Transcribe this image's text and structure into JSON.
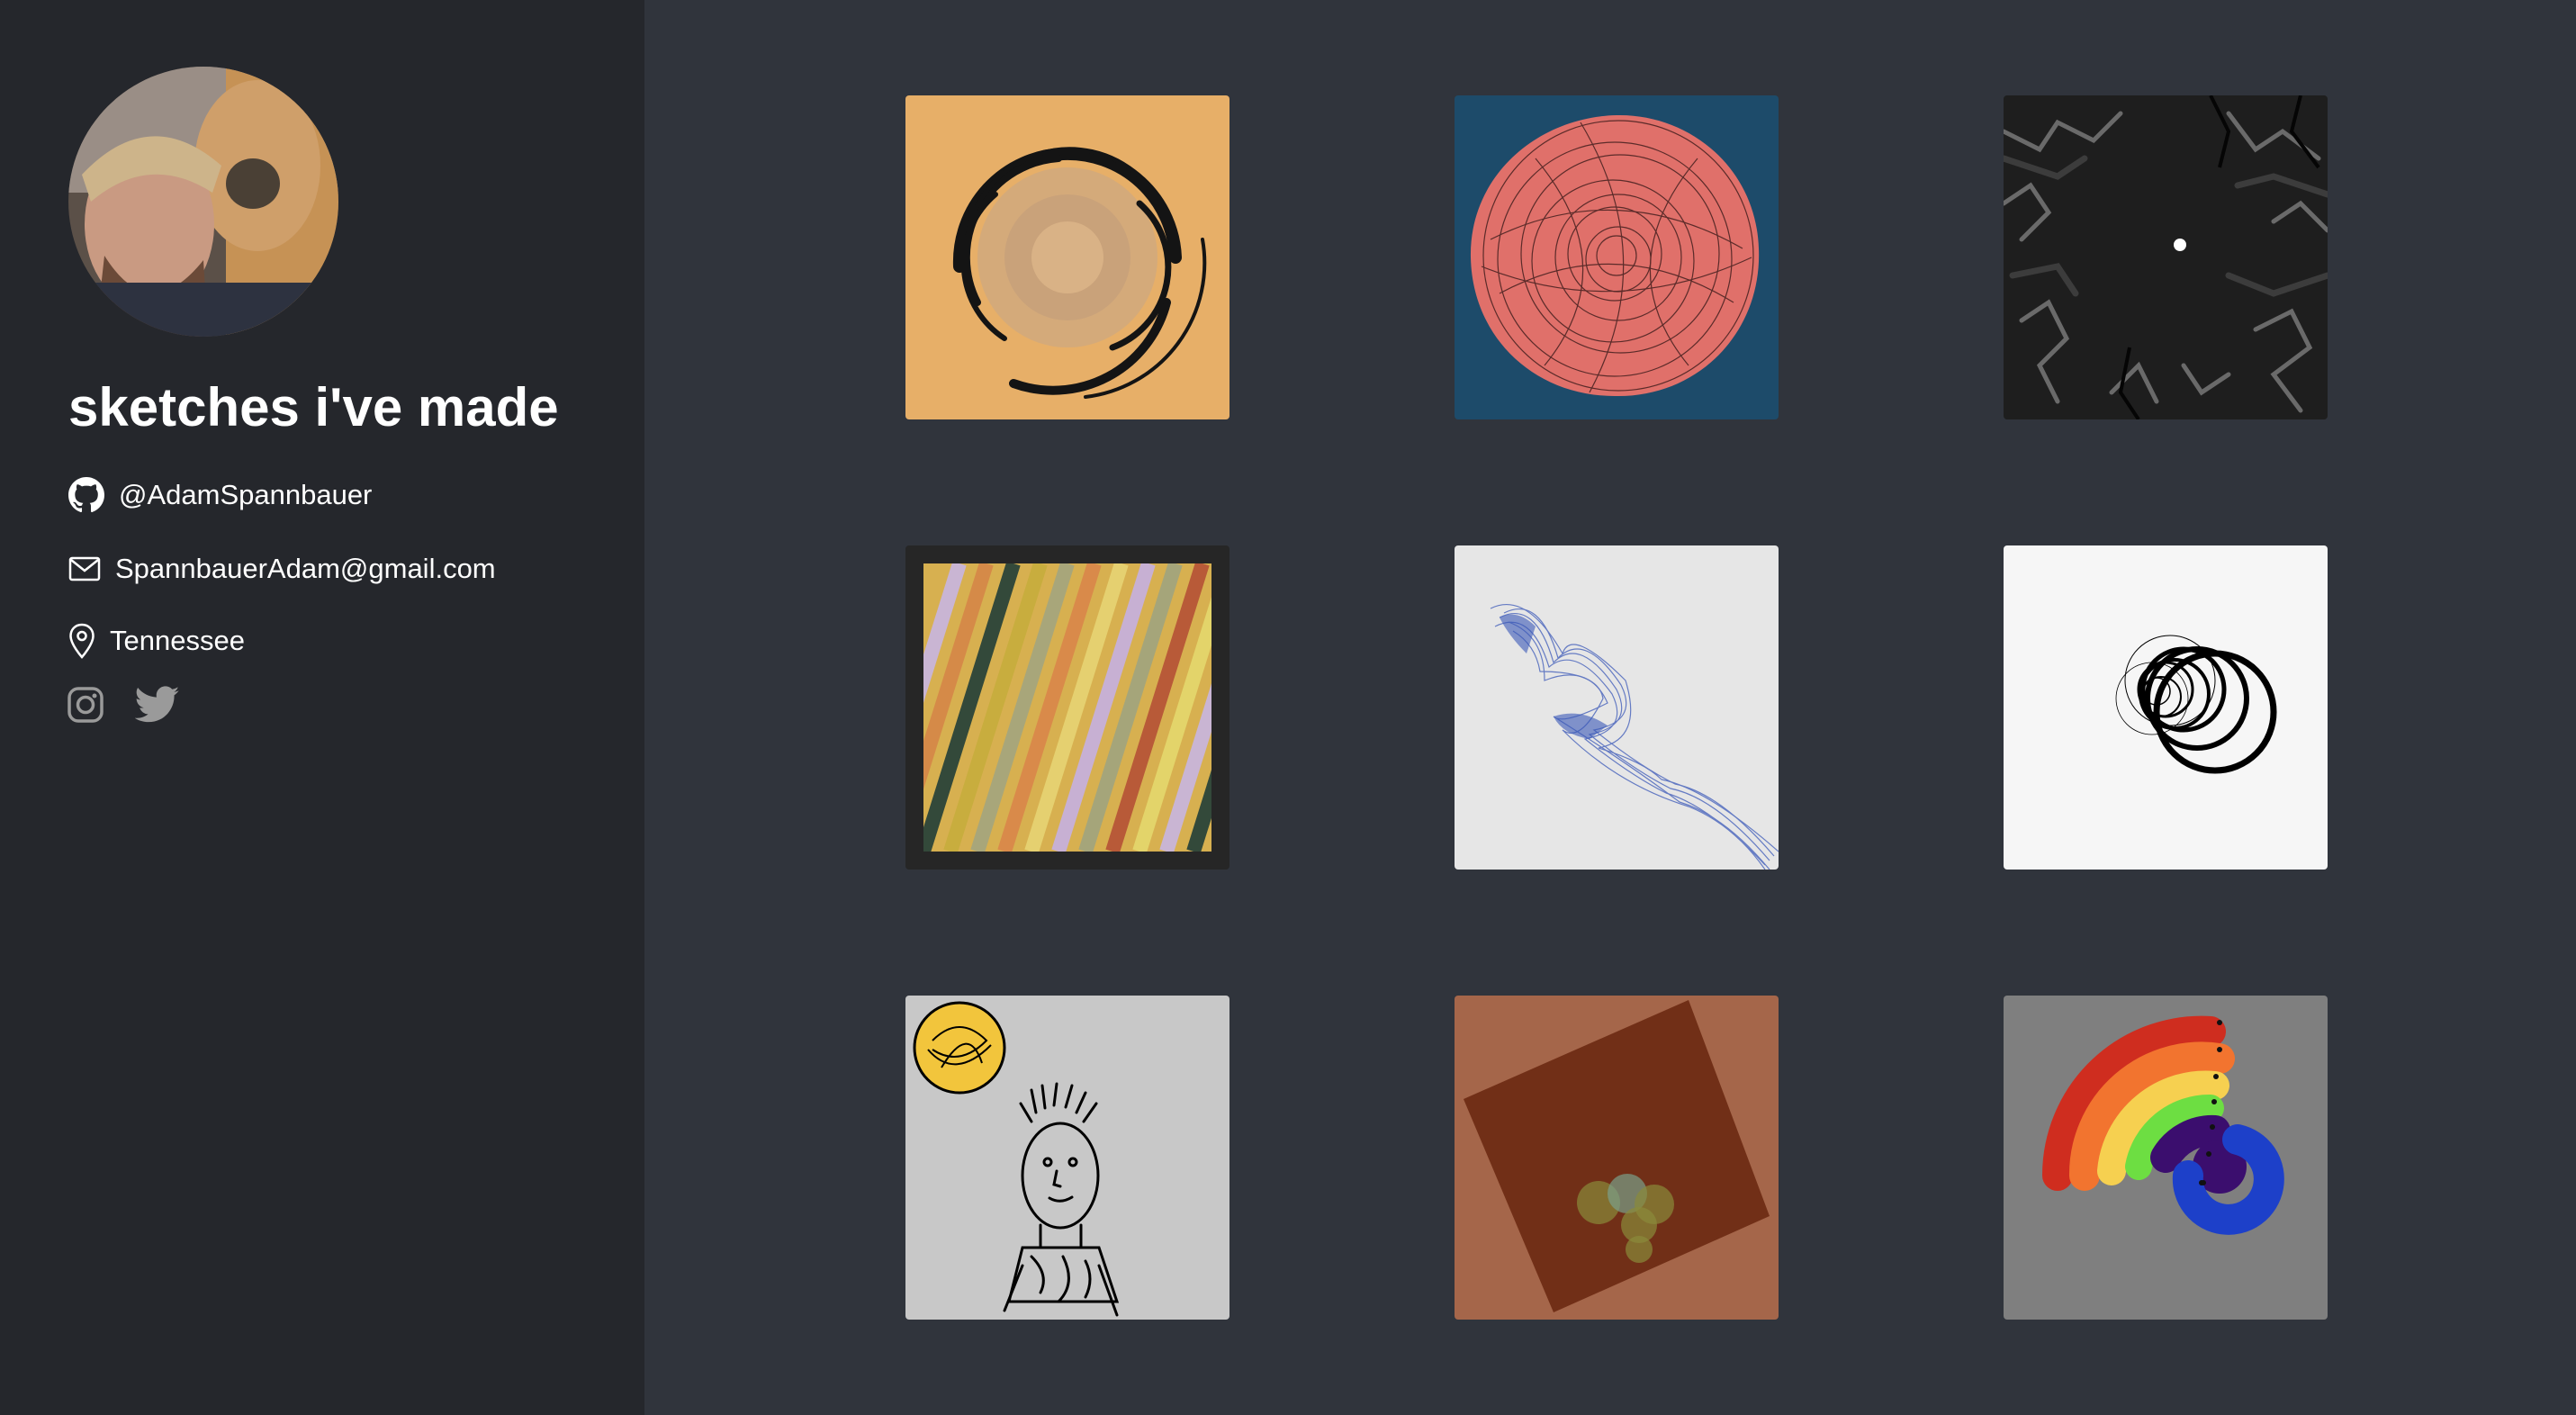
{
  "sidebar": {
    "title": "sketches i've made",
    "github": {
      "icon": "github-icon",
      "handle": "@AdamSpannbauer"
    },
    "email": {
      "icon": "mail-icon",
      "address": "SpannbauerAdam@gmail.com"
    },
    "location": {
      "icon": "location-pin-icon",
      "text": "Tennessee"
    },
    "social": [
      {
        "name": "instagram",
        "icon": "instagram-icon"
      },
      {
        "name": "twitter",
        "icon": "twitter-icon"
      }
    ]
  },
  "gallery": {
    "items": [
      {
        "name": "sketch-orange-swirl",
        "background": "#e7af68"
      },
      {
        "name": "sketch-red-rose",
        "background": "#1d4b6a"
      },
      {
        "name": "sketch-dark-cracks",
        "background": "#1e1e1e"
      },
      {
        "name": "sketch-diagonal-stripes",
        "background": "#262626"
      },
      {
        "name": "sketch-blue-ribbon",
        "background": "#e6e6e6"
      },
      {
        "name": "sketch-black-circles",
        "background": "#f6f6f6"
      },
      {
        "name": "sketch-doodle-person",
        "background": "#c8c8c8"
      },
      {
        "name": "sketch-brown-square",
        "background": "#a5664a"
      },
      {
        "name": "sketch-rainbow-arc",
        "background": "#7f7f7f"
      }
    ]
  }
}
